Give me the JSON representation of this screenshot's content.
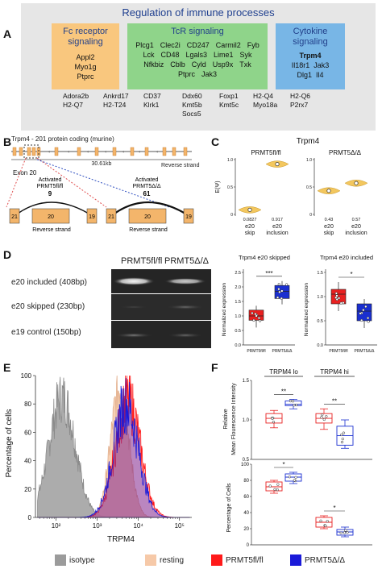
{
  "panelA": {
    "letter": "A",
    "title": "Regulation of immune processes",
    "fc": {
      "title1": "Fc receptor",
      "title2": "signaling",
      "genes": [
        "Appl2",
        "Myo1g",
        "Ptprc"
      ],
      "color": "#f9c77e"
    },
    "tcr": {
      "title": "TcR signaling",
      "rows": [
        [
          "Plcg1",
          "Clec2i",
          "CD247",
          "Carmil2",
          "Fyb"
        ],
        [
          "Lck",
          "CD48",
          "Lgals3",
          "Lime1",
          "Syk"
        ],
        [
          "Nfkbiz",
          "Cblb",
          "Cyld",
          "Usp9x",
          "Txk"
        ],
        [
          "Ptprc",
          "Jak3"
        ]
      ],
      "color": "#8fd48a"
    },
    "cytokine": {
      "title1": "Cytokine",
      "title2": "signaling",
      "bold_gene": "Trpm4",
      "rows": [
        [
          "Il18r1",
          "Jak3"
        ],
        [
          "Dlg1",
          "Il4"
        ]
      ],
      "color": "#78b6e6"
    },
    "other": [
      [
        "Adora2b",
        "H2-Q7"
      ],
      [
        "Ankrd17",
        "H2-T24"
      ],
      [
        "CD37",
        "Klrk1"
      ],
      [
        "Ddx60",
        "Kmt5b",
        "Socs5"
      ],
      [
        "Foxp1",
        "Kmt5c"
      ],
      [
        "H2-Q4",
        "Myo18a"
      ],
      [
        "H2-Q6",
        "P2rx7"
      ]
    ]
  },
  "panelB": {
    "letter": "B",
    "title": "Trpm4 - 201 protein coding (murine)",
    "length": "30.61kb",
    "strand": "Reverse strand",
    "exon": "Exon 20",
    "left": {
      "label1": "Activated",
      "label2": "PRMT5fl/fl",
      "count": "9",
      "exons": [
        "21",
        "20",
        "19"
      ],
      "strand": "Reverse strand"
    },
    "right": {
      "label1": "Activated",
      "label2": "PRMT5Δ/Δ",
      "count": "61",
      "exons": [
        "21",
        "20",
        "19"
      ],
      "strand": "Reverse strand"
    }
  },
  "panelC": {
    "letter": "C",
    "title": "Trpm4",
    "ylabel": "E(Ψ)",
    "yticks": [
      "0",
      "0.5",
      "1.0"
    ],
    "left": {
      "title": "PRMT5fl/fl",
      "groups": [
        {
          "name1": "e20",
          "name2": "skip",
          "value": 0.0827,
          "value_label": "0.0827"
        },
        {
          "name1": "e20",
          "name2": "inclusion",
          "value": 0.917,
          "value_label": "0.917"
        }
      ]
    },
    "right": {
      "title": "PRMT5Δ/Δ",
      "groups": [
        {
          "name1": "e20",
          "name2": "skip",
          "value": 0.43,
          "value_label": "0.43"
        },
        {
          "name1": "e20",
          "name2": "inclusion",
          "value": 0.57,
          "value_label": "0.57"
        }
      ]
    },
    "color": "#f3c75e"
  },
  "panelD": {
    "letter": "D",
    "gel_headers": [
      "PRMT5fl/fl",
      "PRMT5Δ/Δ"
    ],
    "gel_rows": [
      "e20 included (408bp)",
      "e20 skipped (230bp)",
      "e19 control (150bp)"
    ],
    "chart1": {
      "title": "Trpm4 e20 skipped",
      "ylabel": "Normalized expression",
      "yticks": [
        "0.0",
        "0.5",
        "1.0",
        "1.5",
        "2.0",
        "2.5"
      ],
      "sig": "***",
      "groups": [
        "PRMT5fl/fl",
        "PRMT5Δ/Δ"
      ]
    },
    "chart2": {
      "title": "Trpm4 e20 included",
      "ylabel": "Normalized expression",
      "yticks": [
        "0.0",
        "0.5",
        "1.0",
        "1.5"
      ],
      "sig": "*",
      "groups": [
        "PRMT5fl/fl",
        "PRMT5Δ/Δ"
      ]
    }
  },
  "panelE": {
    "letter": "E",
    "ylabel": "Percentage of cells",
    "xlabel": "TRPM4",
    "yticks": [
      "0",
      "20",
      "40",
      "60",
      "80",
      "100"
    ],
    "xticks": [
      "10²",
      "10³",
      "10⁴",
      "10⁵"
    ]
  },
  "panelF": {
    "letter": "F",
    "groups": [
      "TRPM4 lo",
      "TRPM4 hi"
    ],
    "chart1": {
      "ylabel1": "Relative",
      "ylabel2": "Mean Flourescence Intensity",
      "yticks": [
        "0.5",
        "1.0",
        "1.5"
      ],
      "sig": [
        "**",
        "**"
      ]
    },
    "chart2": {
      "ylabel": "Percentage of Cells",
      "yticks": [
        "0",
        "20",
        "40",
        "60",
        "80",
        "100"
      ],
      "sig": [
        "*",
        "*"
      ]
    }
  },
  "legend": [
    {
      "label": "isotype",
      "color": "#9b9b9b"
    },
    {
      "label": "resting",
      "color": "#f6c9a8"
    },
    {
      "label": "PRMT5fl/fl",
      "color": "#ff1a1a"
    },
    {
      "label": "PRMT5Δ/Δ",
      "color": "#1a1ad9"
    }
  ],
  "chart_data": [
    {
      "type": "scatter",
      "title": "Trpm4",
      "ylabel": "E(Ψ)",
      "ylim": [
        0,
        1.0
      ],
      "series": [
        {
          "name": "PRMT5fl/fl",
          "categories": [
            "e20 skip",
            "e20 inclusion"
          ],
          "values": [
            0.0827,
            0.917
          ]
        },
        {
          "name": "PRMT5Δ/Δ",
          "categories": [
            "e20 skip",
            "e20 inclusion"
          ],
          "values": [
            0.43,
            0.57
          ]
        }
      ]
    },
    {
      "type": "bar",
      "title": "Trpm4 e20 skipped",
      "ylabel": "Normalized expression",
      "categories": [
        "PRMT5fl/fl",
        "PRMT5Δ/Δ"
      ],
      "values": [
        1.0,
        1.8
      ],
      "ylim": [
        0,
        2.5
      ]
    },
    {
      "type": "bar",
      "title": "Trpm4 e20 included",
      "ylabel": "Normalized expression",
      "categories": [
        "PRMT5fl/fl",
        "PRMT5Δ/Δ"
      ],
      "values": [
        1.05,
        0.7
      ],
      "ylim": [
        0,
        1.5
      ]
    },
    {
      "type": "line",
      "xlabel": "TRPM4",
      "ylabel": "Percentage of cells",
      "ylim": [
        0,
        100
      ]
    },
    {
      "type": "bar",
      "ylabel": "Relative Mean Flourescence Intensity",
      "categories": [
        "TRPM4 lo",
        "TRPM4 hi"
      ],
      "series": [
        {
          "name": "PRMT5fl/fl",
          "values": [
            1.02,
            1.02
          ]
        },
        {
          "name": "PRMT5Δ/Δ",
          "values": [
            1.2,
            0.8
          ]
        }
      ],
      "ylim": [
        0.5,
        1.5
      ]
    },
    {
      "type": "bar",
      "ylabel": "Percentage of Cells",
      "categories": [
        "TRPM4 lo",
        "TRPM4 hi"
      ],
      "series": [
        {
          "name": "PRMT5fl/fl",
          "values": [
            72,
            28
          ]
        },
        {
          "name": "PRMT5Δ/Δ",
          "values": [
            84,
            16
          ]
        }
      ],
      "ylim": [
        0,
        100
      ]
    }
  ]
}
